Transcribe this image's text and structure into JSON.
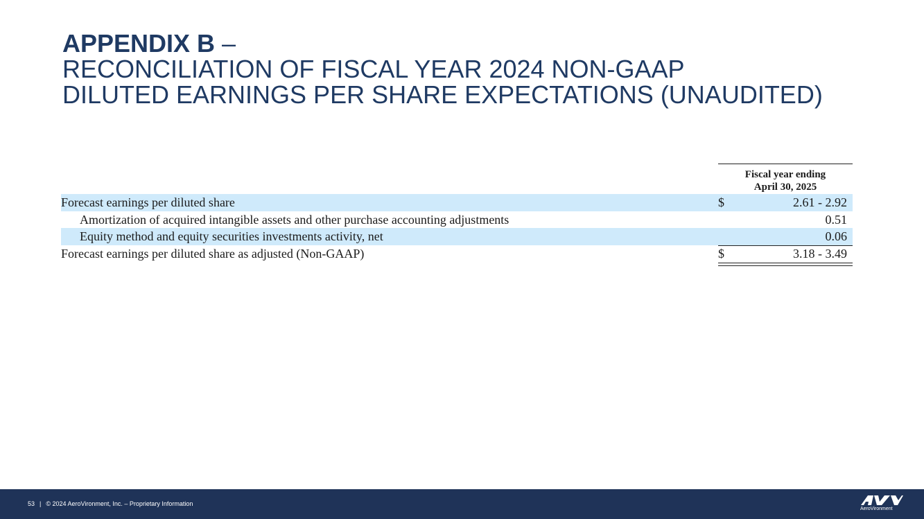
{
  "title": {
    "line1_bold": "APPENDIX B",
    "line1_dash": " –",
    "line2": "RECONCILIATION OF FISCAL YEAR 2024 NON-GAAP",
    "line3": "DILUTED EARNINGS PER SHARE EXPECTATIONS (UNAUDITED)"
  },
  "table": {
    "column_header_line1": "Fiscal year ending",
    "column_header_line2": "April 30, 2025",
    "rows": [
      {
        "label": "Forecast earnings per diluted share",
        "currency": "$",
        "value": "2.61 - 2.92"
      },
      {
        "label": "Amortization of acquired intangible assets and other purchase accounting adjustments",
        "currency": "",
        "value": "0.51"
      },
      {
        "label": "Equity method and equity securities investments activity, net",
        "currency": "",
        "value": "0.06"
      },
      {
        "label": "Forecast earnings per diluted share as adjusted (Non-GAAP)",
        "currency": "$",
        "value": "3.18 - 3.49"
      }
    ]
  },
  "footer": {
    "page_number": "53",
    "separator": "|",
    "copyright": "© 2024 AeroVironment, Inc. – Proprietary Information",
    "logo_text": "AeroVironment"
  },
  "colors": {
    "title": "#1f3a63",
    "row_shade": "#cfeafb",
    "footer_bg": "#1f3358"
  },
  "icons": {
    "logo": "aerovironment-av-logo"
  }
}
